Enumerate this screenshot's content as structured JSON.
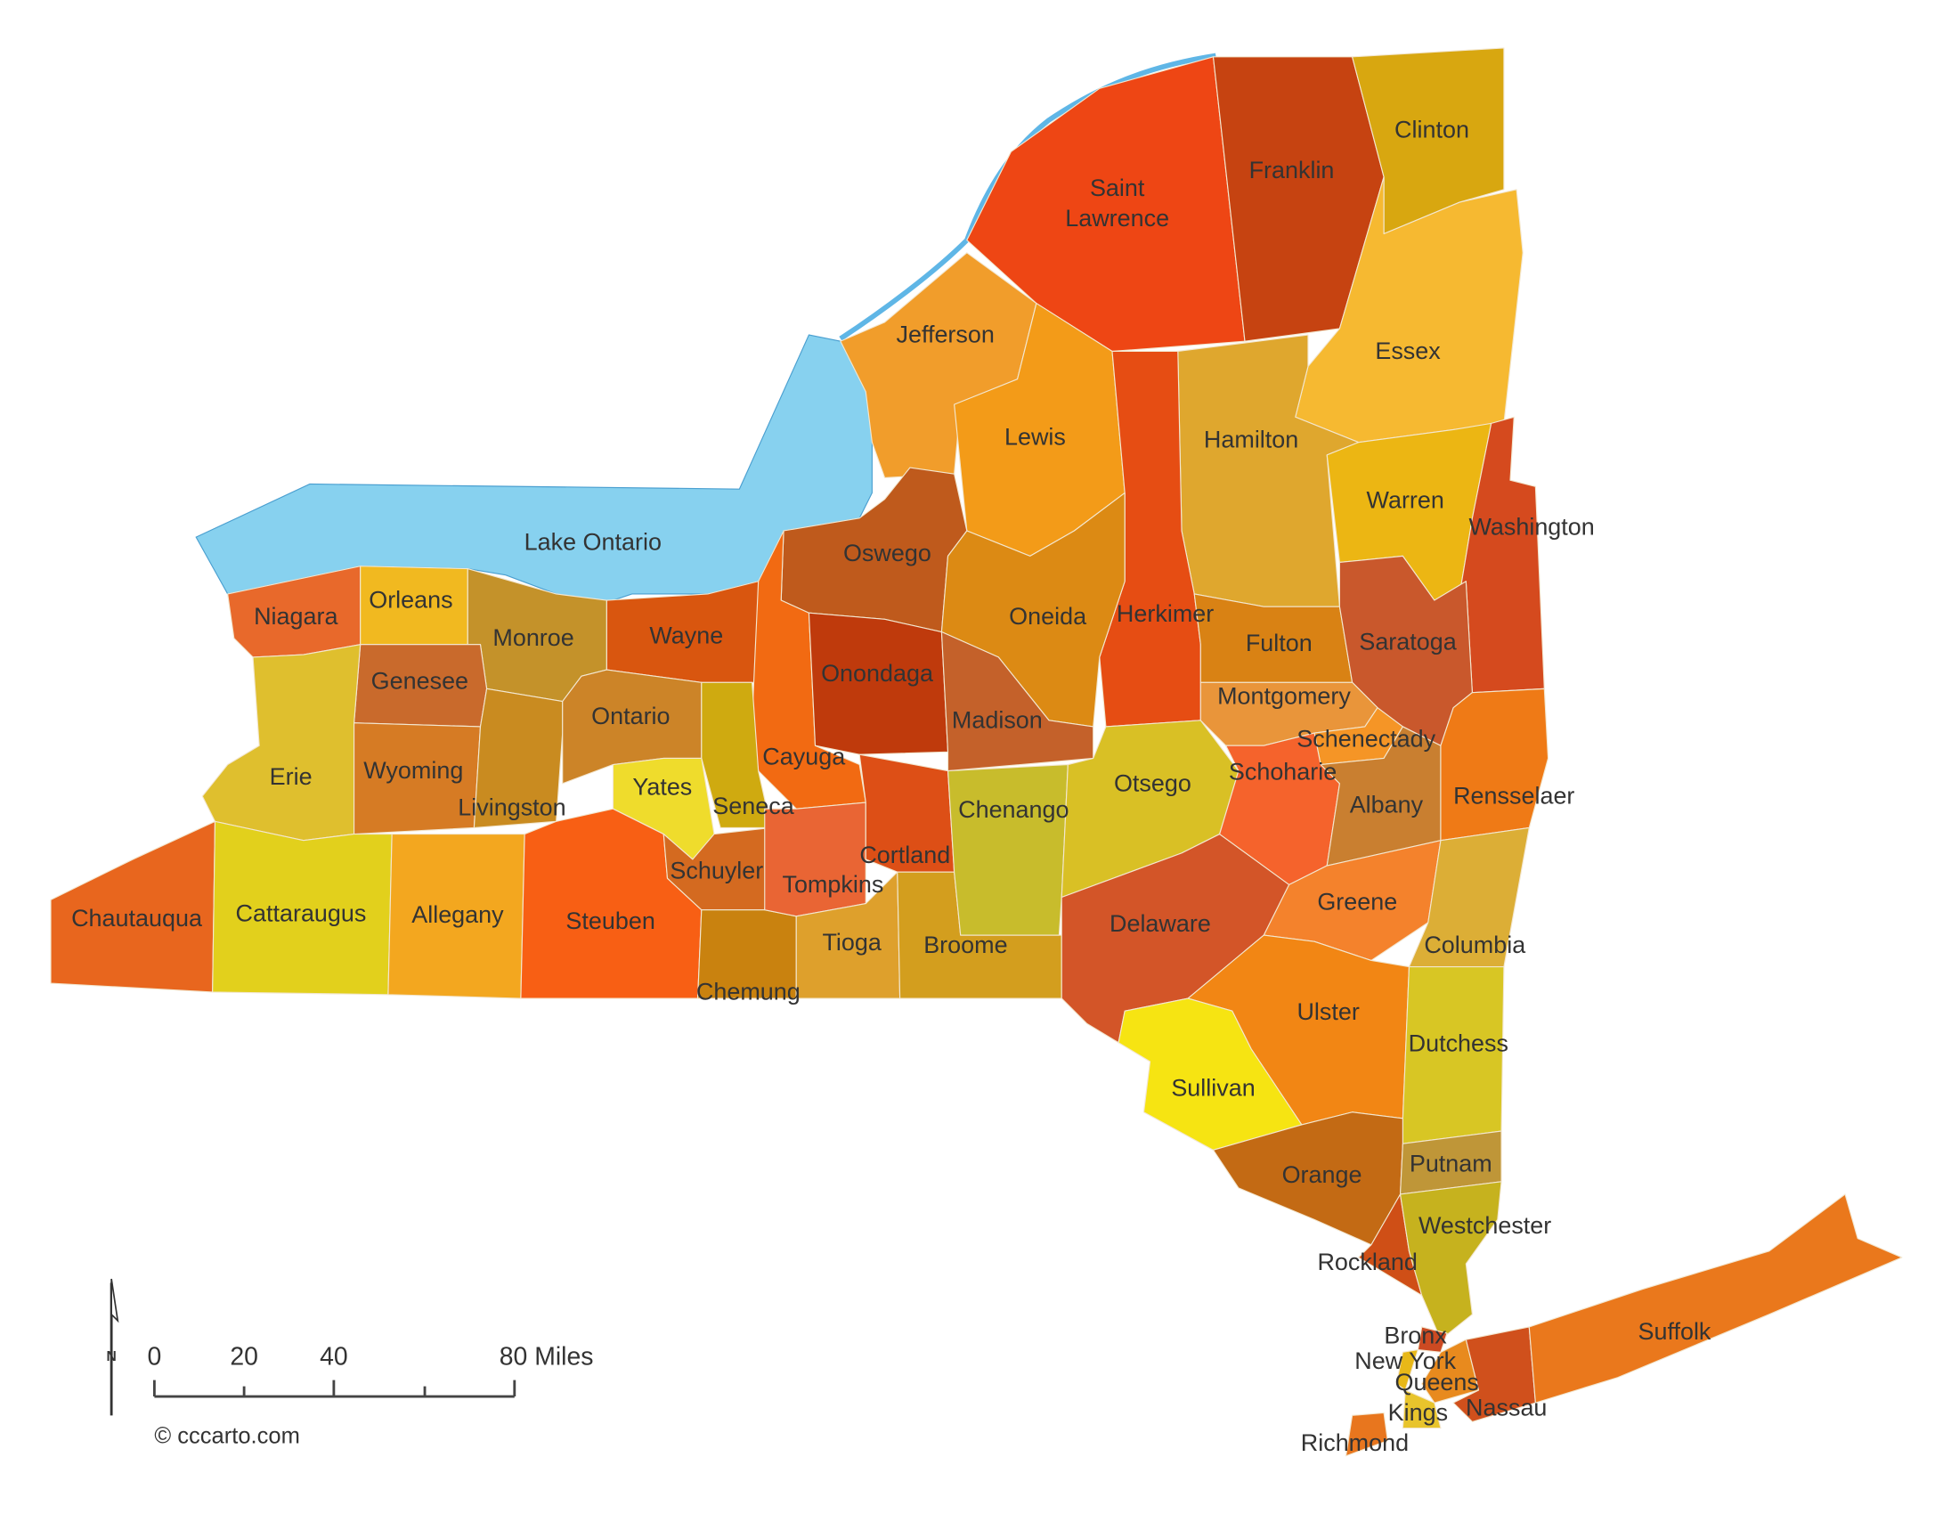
{
  "map": {
    "lake_label": "Lake Ontario",
    "water_color": "#87d1ef",
    "label_color": "#333333",
    "counties": [
      {
        "name": "Saint Lawrence",
        "color": "#ee4614"
      },
      {
        "name": "Franklin",
        "color": "#c64311"
      },
      {
        "name": "Clinton",
        "color": "#d8a710"
      },
      {
        "name": "Essex",
        "color": "#f6b931"
      },
      {
        "name": "Jefferson",
        "color": "#f19d2b"
      },
      {
        "name": "Lewis",
        "color": "#f39b18"
      },
      {
        "name": "Hamilton",
        "color": "#dfa72e"
      },
      {
        "name": "Herkimer",
        "color": "#e64d13"
      },
      {
        "name": "Warren",
        "color": "#ecb613"
      },
      {
        "name": "Washington",
        "color": "#d54a1e"
      },
      {
        "name": "Oswego",
        "color": "#bf5a1c"
      },
      {
        "name": "Oneida",
        "color": "#dc8a14"
      },
      {
        "name": "Fulton",
        "color": "#d98214"
      },
      {
        "name": "Saratoga",
        "color": "#c9582c"
      },
      {
        "name": "Niagara",
        "color": "#e8692b"
      },
      {
        "name": "Orleans",
        "color": "#f1b920"
      },
      {
        "name": "Monroe",
        "color": "#c4922a"
      },
      {
        "name": "Wayne",
        "color": "#d9560f"
      },
      {
        "name": "Cayuga",
        "color": "#f26a12"
      },
      {
        "name": "Onondaga",
        "color": "#bf3a0c"
      },
      {
        "name": "Madison",
        "color": "#c4612a"
      },
      {
        "name": "Genesee",
        "color": "#c96a2c"
      },
      {
        "name": "Erie",
        "color": "#dfbf2e"
      },
      {
        "name": "Wyoming",
        "color": "#d67b24"
      },
      {
        "name": "Livingston",
        "color": "#c98b20"
      },
      {
        "name": "Ontario",
        "color": "#cc8428"
      },
      {
        "name": "Seneca",
        "color": "#cfaa10"
      },
      {
        "name": "Yates",
        "color": "#efdc2c"
      },
      {
        "name": "Chautauqua",
        "color": "#e8661e"
      },
      {
        "name": "Cattaraugus",
        "color": "#e2d01c"
      },
      {
        "name": "Allegany",
        "color": "#f3a71f"
      },
      {
        "name": "Steuben",
        "color": "#f85f14"
      },
      {
        "name": "Schuyler",
        "color": "#d46a20"
      },
      {
        "name": "Chemung",
        "color": "#c9820f"
      },
      {
        "name": "Tompkins",
        "color": "#e96534"
      },
      {
        "name": "Cortland",
        "color": "#dd4f16"
      },
      {
        "name": "Tioga",
        "color": "#dea02c"
      },
      {
        "name": "Broome",
        "color": "#d39e1e"
      },
      {
        "name": "Chenango",
        "color": "#c8bc2c"
      },
      {
        "name": "Otsego",
        "color": "#d9c025"
      },
      {
        "name": "Delaware",
        "color": "#d35528"
      },
      {
        "name": "Montgomery",
        "color": "#e9953a"
      },
      {
        "name": "Schenectady",
        "color": "#f59526"
      },
      {
        "name": "Schoharie",
        "color": "#f5632c"
      },
      {
        "name": "Albany",
        "color": "#c97f30"
      },
      {
        "name": "Rensselaer",
        "color": "#ef7a16"
      },
      {
        "name": "Greene",
        "color": "#f4822c"
      },
      {
        "name": "Columbia",
        "color": "#dcae36"
      },
      {
        "name": "Ulster",
        "color": "#f28614"
      },
      {
        "name": "Sullivan",
        "color": "#f6e412"
      },
      {
        "name": "Dutchess",
        "color": "#d8c624"
      },
      {
        "name": "Orange",
        "color": "#c36a14"
      },
      {
        "name": "Putnam",
        "color": "#bf9638"
      },
      {
        "name": "Rockland",
        "color": "#cf4f16"
      },
      {
        "name": "Westchester",
        "color": "#c6b21e"
      },
      {
        "name": "Bronx",
        "color": "#cc4a22"
      },
      {
        "name": "New York",
        "color": "#e8b818"
      },
      {
        "name": "Queens",
        "color": "#e88a1e"
      },
      {
        "name": "Kings",
        "color": "#e8c42c"
      },
      {
        "name": "Richmond",
        "color": "#e8761e"
      },
      {
        "name": "Nassau",
        "color": "#d0501c"
      },
      {
        "name": "Suffolk",
        "color": "#ea781c"
      }
    ]
  },
  "scale": {
    "ticks": [
      "0",
      "20",
      "40",
      "80 Miles"
    ],
    "north_label": "N"
  },
  "copyright": "© cccarto.com"
}
